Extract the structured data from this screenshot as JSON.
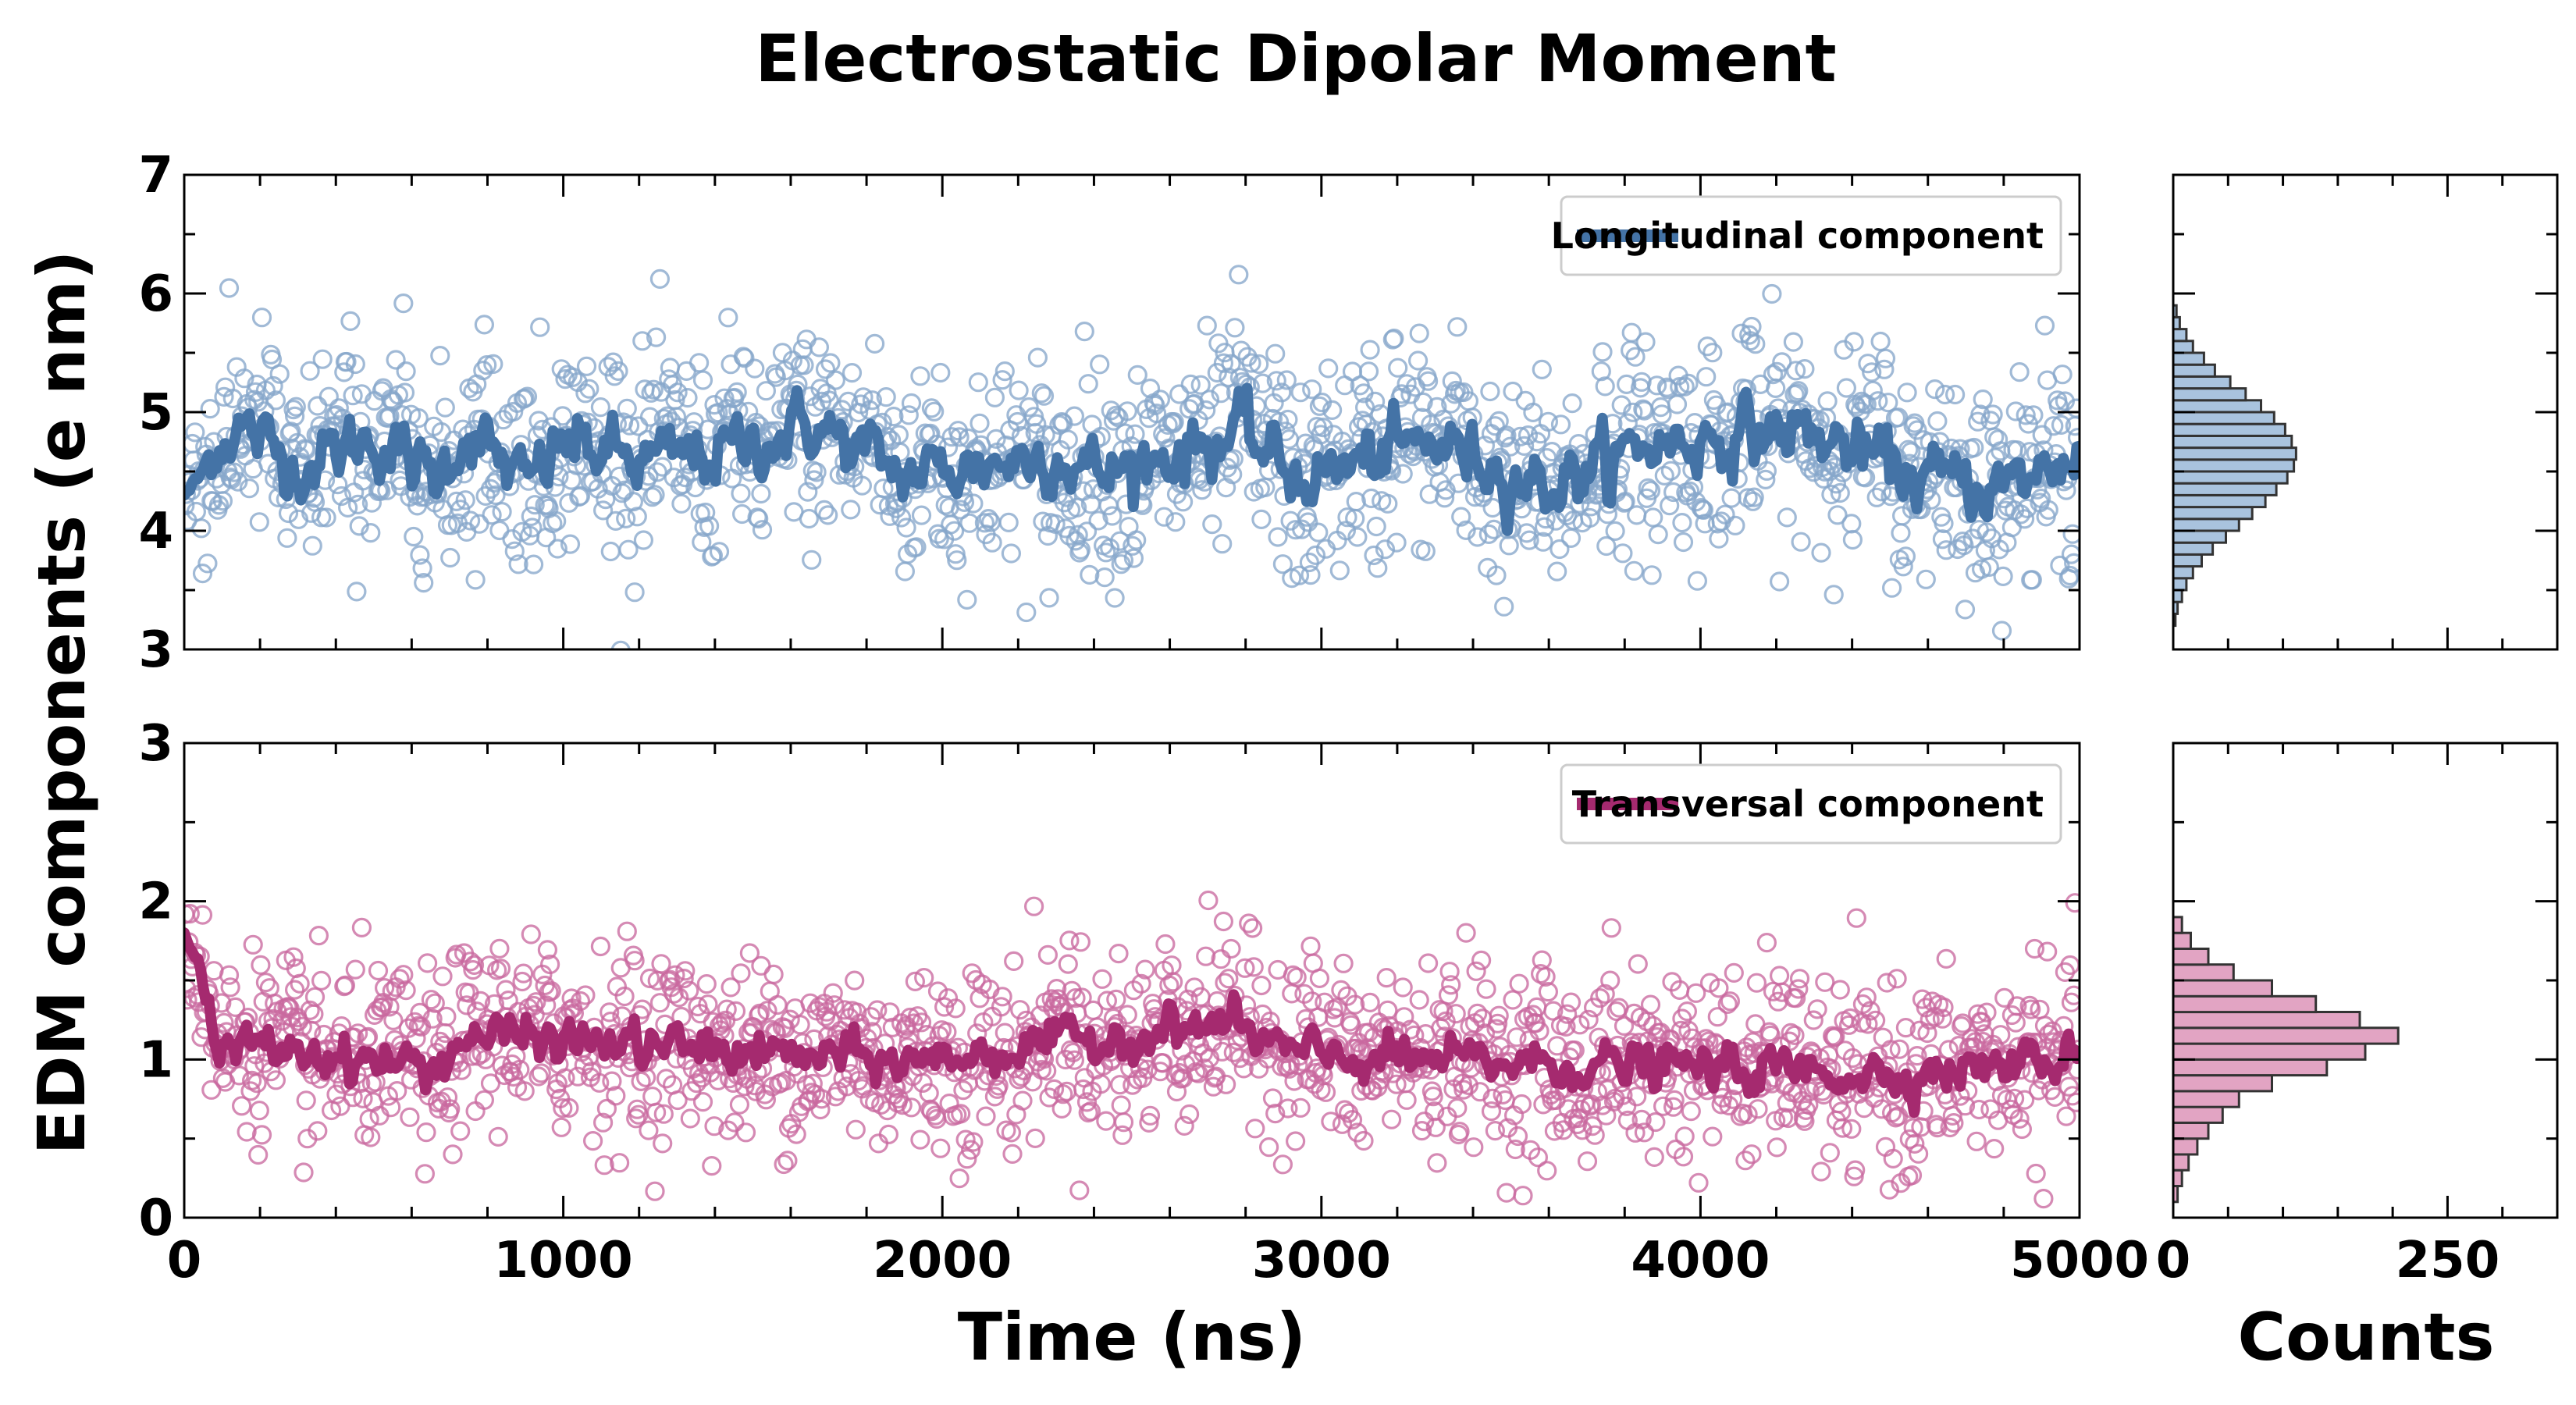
{
  "figure": {
    "title": "Electrostatic Dipolar Moment",
    "ylabel": "EDM components (e nm)",
    "xlabel": "Time (ns)",
    "hist_xlabel": "Counts"
  },
  "colors": {
    "longitudinal": "#4473a6",
    "longitudinal_scatter": "#86a6cb",
    "transversal": "#a52a6f",
    "transversal_scatter": "#c9699f",
    "longitudinal_hist_fill": "#a9c3de",
    "transversal_hist_fill": "#e2a4c3",
    "axes": "#000000"
  },
  "chart_data": [
    {
      "id": "longitudinal",
      "type": "line",
      "scatter_overlay": true,
      "series": [
        {
          "name": "Longitudinal component",
          "role": "scatter_raw",
          "mean": 4.62,
          "sd": 0.52,
          "n_points": 1500
        },
        {
          "name": "Longitudinal component",
          "role": "moving_average",
          "mean": 4.62,
          "sd": 0.3,
          "x": [
            0,
            140,
            300,
            500,
            660,
            750,
            900,
            1000,
            1200,
            1400,
            1660,
            1900,
            2300,
            2420,
            2780,
            2950,
            3300,
            3600,
            3850,
            4250,
            4600,
            4820,
            5000
          ],
          "values": [
            4.3,
            5.4,
            4.4,
            5.1,
            4.1,
            5.3,
            3.9,
            5.0,
            4.5,
            4.7,
            5.4,
            4.2,
            4.7,
            4.2,
            5.2,
            4.1,
            5.0,
            3.9,
            4.9,
            5.3,
            4.1,
            3.9,
            4.8
          ]
        }
      ],
      "xlabel": "",
      "ylabel": "",
      "xlim": [
        0,
        5000
      ],
      "ylim": [
        3,
        7
      ],
      "xticks": [
        0,
        1000,
        2000,
        3000,
        4000,
        5000
      ],
      "yticks": [
        3,
        4,
        5,
        6,
        7
      ],
      "ytick_labels": [
        "3",
        "4",
        "5",
        "6",
        "7"
      ],
      "legend": {
        "label": "Longitudinal component",
        "position": "top-right"
      }
    },
    {
      "id": "transversal",
      "type": "line",
      "scatter_overlay": true,
      "series": [
        {
          "name": "Transversal component",
          "role": "scatter_raw",
          "mean": 1.08,
          "sd": 0.35,
          "n_points": 1500
        },
        {
          "name": "Transversal component",
          "role": "moving_average",
          "mean": 1.08,
          "sd": 0.15,
          "x": [
            0,
            40,
            80,
            200,
            660,
            750,
            1900,
            2750,
            2950,
            4000,
            4500,
            4920,
            5000
          ],
          "values": [
            1.8,
            1.9,
            0.9,
            1.1,
            0.7,
            1.3,
            0.8,
            1.5,
            0.9,
            0.7,
            0.6,
            0.8,
            1.1
          ]
        }
      ],
      "xlabel": "Time (ns)",
      "ylabel": "",
      "xlim": [
        0,
        5000
      ],
      "ylim": [
        0,
        3
      ],
      "xticks": [
        0,
        1000,
        2000,
        3000,
        4000,
        5000
      ],
      "xtick_labels": [
        "0",
        "1000",
        "2000",
        "3000",
        "4000",
        "5000"
      ],
      "yticks": [
        0,
        1,
        2,
        3
      ],
      "ytick_labels": [
        "0",
        "1",
        "2",
        "3"
      ],
      "legend": {
        "label": "Transversal component",
        "position": "top-right"
      }
    },
    {
      "id": "longitudinal_hist",
      "type": "bar",
      "orientation": "horizontal",
      "bin_edges": [
        3.2,
        3.3,
        3.4,
        3.5,
        3.6,
        3.7,
        3.8,
        3.9,
        4.0,
        4.1,
        4.2,
        4.3,
        4.4,
        4.5,
        4.6,
        4.7,
        4.8,
        4.9,
        5.0,
        5.1,
        5.2,
        5.3,
        5.4,
        5.5,
        5.6,
        5.7,
        5.8,
        5.9
      ],
      "values": [
        2,
        4,
        8,
        12,
        18,
        26,
        36,
        48,
        60,
        72,
        84,
        94,
        104,
        110,
        112,
        108,
        102,
        92,
        80,
        66,
        52,
        38,
        28,
        18,
        12,
        6,
        3
      ],
      "xlabel": "Counts",
      "xlim": [
        0,
        350
      ],
      "xticks": [
        0,
        250
      ],
      "xtick_labels": [],
      "ylim": [
        3,
        7
      ]
    },
    {
      "id": "transversal_hist",
      "type": "bar",
      "orientation": "horizontal",
      "bin_edges": [
        0.1,
        0.2,
        0.3,
        0.4,
        0.5,
        0.6,
        0.7,
        0.8,
        0.9,
        1.0,
        1.1,
        1.2,
        1.3,
        1.4,
        1.5,
        1.6,
        1.7,
        1.8,
        1.9
      ],
      "values": [
        4,
        8,
        14,
        22,
        32,
        45,
        60,
        90,
        140,
        175,
        205,
        170,
        130,
        90,
        55,
        32,
        16,
        8
      ],
      "xlabel": "Counts",
      "xlim": [
        0,
        350
      ],
      "xticks": [
        0,
        250
      ],
      "xtick_labels": [
        "0",
        "250"
      ],
      "ylim": [
        0,
        3
      ]
    }
  ]
}
